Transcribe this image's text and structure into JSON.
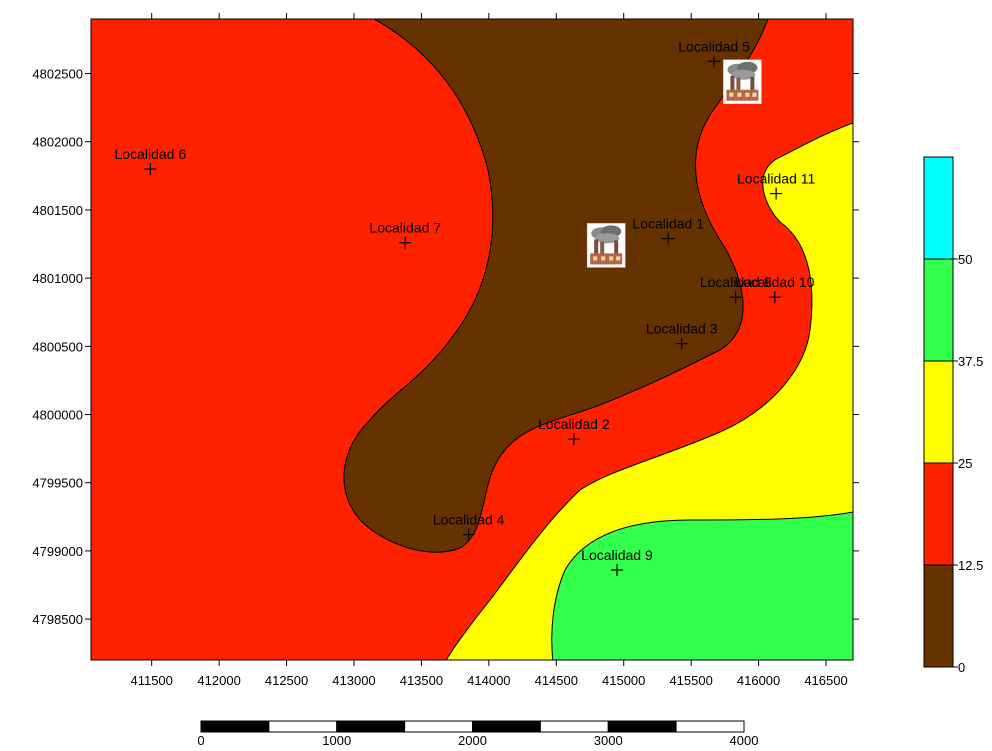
{
  "map": {
    "x_axis": {
      "range": [
        411050,
        416700
      ],
      "ticks": [
        411500,
        412000,
        412500,
        413000,
        413500,
        414000,
        414500,
        415000,
        415500,
        416000,
        416500
      ],
      "labels": [
        "411500",
        "412000",
        "412500",
        "413000",
        "413500",
        "414000",
        "414500",
        "415000",
        "415500",
        "416000",
        "416500"
      ]
    },
    "y_axis": {
      "range": [
        4798200,
        4802900
      ],
      "ticks": [
        4798500,
        4799000,
        4799500,
        4800000,
        4800500,
        4801000,
        4801500,
        4802000,
        4802500
      ],
      "labels": [
        "4798500",
        "4799000",
        "4799500",
        "4800000",
        "4800500",
        "4801000",
        "4801500",
        "4802000",
        "4802500"
      ]
    },
    "zone_colors": {
      "0-12.5": "#663300",
      "12.5-25": "#ff2200",
      "25-37.5": "#ffff00",
      "37.5-50": "#33ff4d",
      "50+": "#00ffff"
    },
    "localities": [
      {
        "label": "Localidad 1",
        "x": 415330,
        "y": 4801290
      },
      {
        "label": "Localidad 2",
        "x": 414630,
        "y": 4799820
      },
      {
        "label": "Localidad 3",
        "x": 415430,
        "y": 4800520
      },
      {
        "label": "Localidad 4",
        "x": 413850,
        "y": 4799120
      },
      {
        "label": "Localidad 5",
        "x": 415670,
        "y": 4802590
      },
      {
        "label": "Localidad 6",
        "x": 411490,
        "y": 4801800
      },
      {
        "label": "Localidad 7",
        "x": 413380,
        "y": 4801260
      },
      {
        "label": "Localidad 8",
        "x": 415830,
        "y": 4800860
      },
      {
        "label": "Localidad 9",
        "x": 414950,
        "y": 4798860
      },
      {
        "label": "Localidad 10",
        "x": 416120,
        "y": 4800860
      },
      {
        "label": "Localidad 11",
        "x": 416130,
        "y": 4801620
      }
    ],
    "factories": [
      {
        "icon": "factory-icon",
        "x": 414870,
        "y": 4801240
      },
      {
        "icon": "factory-icon",
        "x": 415880,
        "y": 4802440
      }
    ]
  },
  "legend": {
    "bands": [
      {
        "color": "#663300",
        "label": "0"
      },
      {
        "color": "#ff2200",
        "label": "12.5"
      },
      {
        "color": "#ffff00",
        "label": "25"
      },
      {
        "color": "#33ff4d",
        "label": "37.5"
      },
      {
        "color": "#00ffff",
        "label": "50"
      }
    ]
  },
  "scale_bar": {
    "labels": [
      "0",
      "1000",
      "2000",
      "3000",
      "4000"
    ]
  }
}
